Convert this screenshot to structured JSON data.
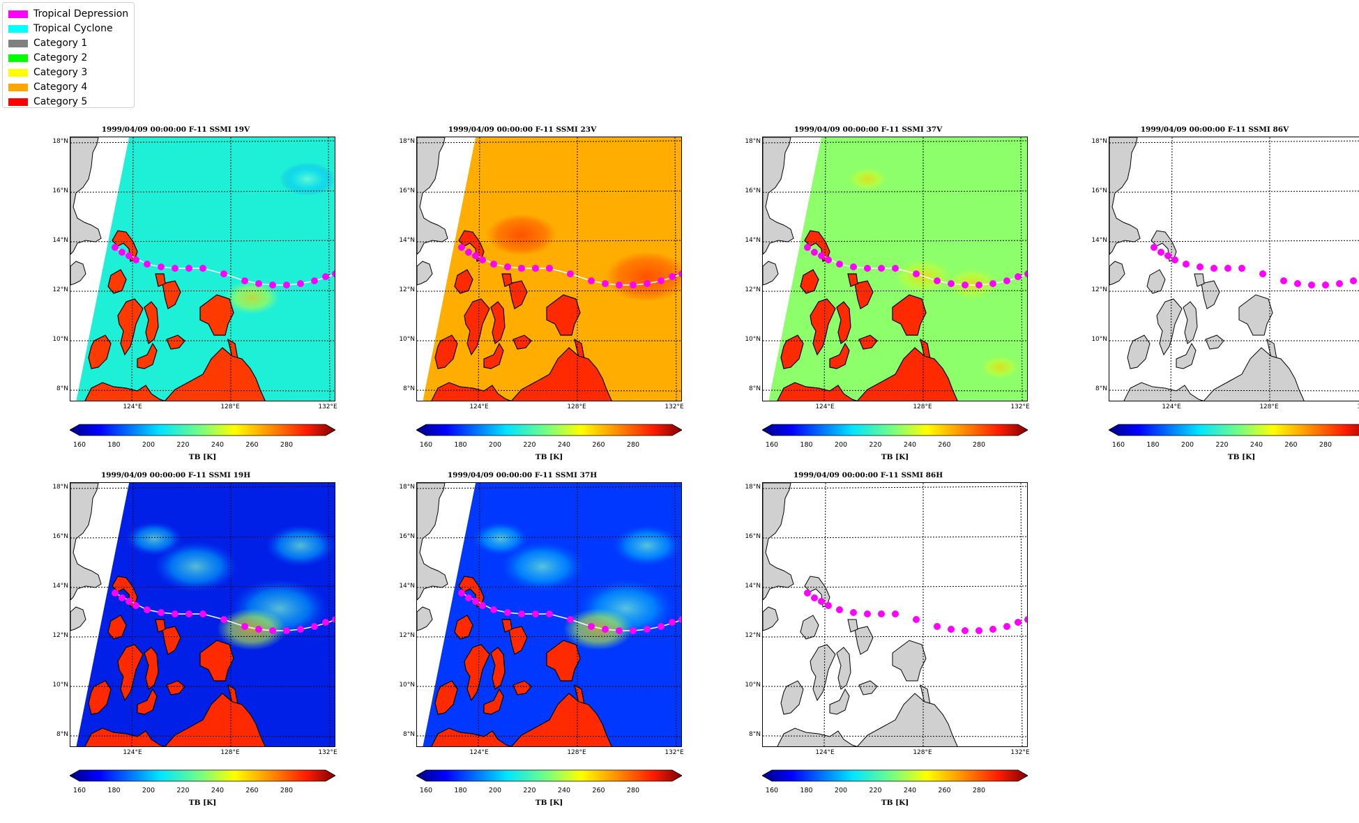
{
  "legend": {
    "items": [
      {
        "label": "Tropical Depression",
        "color": "#ff00ff"
      },
      {
        "label": "Tropical Cyclone",
        "color": "#00ffff"
      },
      {
        "label": "Category 1",
        "color": "#808080"
      },
      {
        "label": "Category 2",
        "color": "#00ff00"
      },
      {
        "label": "Category 3",
        "color": "#ffff00"
      },
      {
        "label": "Category 4",
        "color": "#ffa500"
      },
      {
        "label": "Category 5",
        "color": "#ff0000"
      }
    ]
  },
  "map_axes": {
    "lat_labels": [
      "18°N",
      "16°N",
      "14°N",
      "12°N",
      "10°N",
      "8°N"
    ],
    "lon_labels": [
      "124°E",
      "128°E",
      "132°E"
    ]
  },
  "colorbar": {
    "ticks": [
      "160",
      "180",
      "200",
      "220",
      "240",
      "260",
      "280"
    ],
    "label": "TB [K]"
  },
  "panels": [
    {
      "title": "1999/04/09 00:00:00  F-11 SSMI 19V",
      "field": "cyan"
    },
    {
      "title": "1999/04/09 00:00:00  F-11 SSMI 23V",
      "field": "orange"
    },
    {
      "title": "1999/04/09 00:00:00  F-11 SSMI 37V",
      "field": "green"
    },
    {
      "title": "1999/04/09 00:00:00  F-11 SSMI 86V",
      "field": "empty"
    },
    {
      "title": "1999/04/09 00:00:00  F-11 SSMI 19H",
      "field": "blue"
    },
    {
      "title": "1999/04/09 00:00:00  F-11 SSMI 37H",
      "field": "blue2"
    },
    {
      "title": "1999/04/09 00:00:00  F-11 SSMI 86H",
      "field": "empty"
    }
  ],
  "storm_track_color": "#ff00ff"
}
